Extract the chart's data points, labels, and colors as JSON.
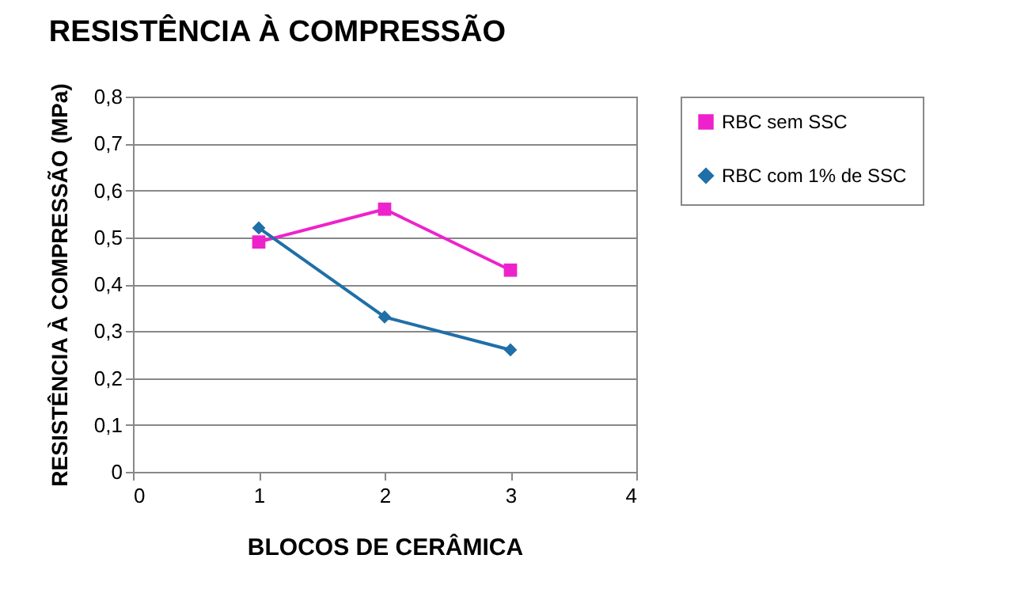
{
  "chart_data": {
    "type": "line",
    "title": "RESISTÊNCIA  À COMPRESSÃO",
    "xlabel": "BLOCOS DE CERÂMICA",
    "ylabel": "RESISTÊNCIA À COMPRESSÃO (MPa)",
    "x": [
      1,
      2,
      3
    ],
    "series": [
      {
        "name": "RBC sem SSC",
        "color": "#ee22cc",
        "marker": "square",
        "values": [
          0.49,
          0.56,
          0.43
        ]
      },
      {
        "name": "RBC com 1% de SSC",
        "color": "#1f6fa8",
        "marker": "diamond",
        "values": [
          0.52,
          0.33,
          0.26
        ]
      }
    ],
    "xlim": [
      0,
      4
    ],
    "xticks": [
      0,
      1,
      2,
      3,
      4
    ],
    "ylim": [
      0,
      0.8
    ],
    "yticks": [
      0,
      {
        "value": 0.1,
        "label": "0,1"
      },
      {
        "value": 0.2,
        "label": "0,2"
      },
      {
        "value": 0.3,
        "label": "0,3"
      },
      {
        "value": 0.4,
        "label": "0,4"
      },
      {
        "value": 0.5,
        "label": "0,5"
      },
      {
        "value": 0.6,
        "label": "0,6"
      },
      {
        "value": 0.7,
        "label": "0,7"
      },
      {
        "value": 0.8,
        "label": "0,8"
      }
    ],
    "grid": "y",
    "legend": "right",
    "line_style": "solid"
  }
}
